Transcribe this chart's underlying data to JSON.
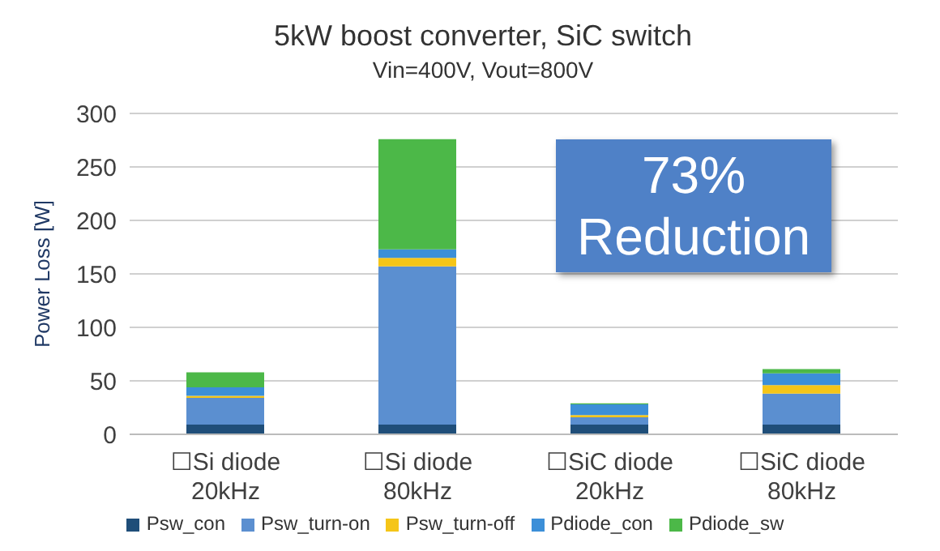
{
  "chart_data": {
    "type": "bar",
    "title": "5kW boost converter, SiC switch",
    "subtitle": "Vin=400V, Vout=800V",
    "ylabel": "Power Loss [W]",
    "categories": [
      "☐Si diode 20kHz",
      "☐Si diode 80kHz",
      "☐SiC diode 20kHz",
      "☐SiC diode 80kHz"
    ],
    "stacked": true,
    "series": [
      {
        "name": "Psw_con",
        "color": "#1f4e79",
        "values": [
          9,
          9,
          9,
          9
        ]
      },
      {
        "name": "Psw_turn-on",
        "color": "#5b8fd0",
        "values": [
          25,
          148,
          7,
          29
        ]
      },
      {
        "name": "Psw_turn-off",
        "color": "#f5c518",
        "values": [
          2,
          8,
          2,
          8
        ]
      },
      {
        "name": "Pdiode_con",
        "color": "#3c8fd8",
        "values": [
          8,
          8,
          10,
          11
        ]
      },
      {
        "name": "Pdiode_sw",
        "color": "#4cb848",
        "values": [
          14,
          103,
          1,
          4
        ]
      }
    ],
    "ylim": [
      0,
      300
    ],
    "yticks": [
      0,
      50,
      100,
      150,
      200,
      250,
      300
    ],
    "grid": "y",
    "legend": "bottom",
    "annotations": [
      "73% Reduction"
    ]
  }
}
